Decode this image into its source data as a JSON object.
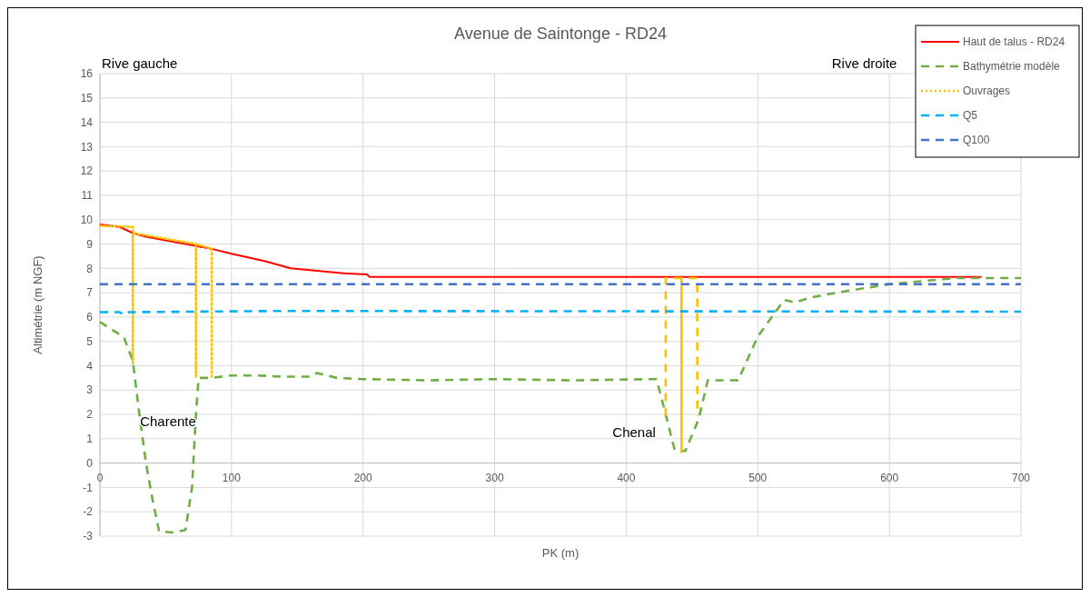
{
  "chart_data": {
    "type": "line",
    "title": "Avenue de Saintonge - RD24",
    "xlabel": "PK (m)",
    "ylabel": "Altimétrie (m NGF)",
    "xlim": [
      0,
      700
    ],
    "xticks": [
      0,
      100,
      200,
      300,
      400,
      500,
      600,
      700
    ],
    "ylim": [
      -3,
      16
    ],
    "yticks": [
      -3,
      -2,
      -1,
      0,
      1,
      2,
      3,
      4,
      5,
      6,
      7,
      8,
      9,
      10,
      11,
      12,
      13,
      14,
      15,
      16
    ],
    "grid": true,
    "legend": "top right",
    "series": [
      {
        "name": "Haut de talus - RD24",
        "color": "#ff0000",
        "line_style": "solid",
        "x": [
          0,
          15,
          25,
          35,
          50,
          65,
          80,
          85,
          100,
          125,
          145,
          165,
          185,
          203,
          205,
          670
        ],
        "values": [
          9.8,
          9.7,
          9.45,
          9.3,
          9.15,
          9.0,
          8.85,
          8.8,
          8.6,
          8.3,
          8.0,
          7.9,
          7.8,
          7.75,
          7.65,
          7.65
        ]
      },
      {
        "name": "Bathymétrie modèle",
        "color": "#70ad47",
        "line_style": "dashed",
        "x": [
          0,
          10,
          18,
          25,
          30,
          35,
          40,
          45,
          55,
          65,
          70,
          73,
          75,
          85,
          100,
          120,
          140,
          160,
          165,
          180,
          200,
          250,
          300,
          360,
          420,
          423,
          430,
          437,
          445,
          455,
          462,
          470,
          485,
          500,
          520,
          528,
          540,
          560,
          600,
          650,
          700
        ],
        "values": [
          5.8,
          5.45,
          5.2,
          4.2,
          2,
          0,
          -1.5,
          -2.8,
          -2.85,
          -2.75,
          -1,
          2,
          3.5,
          3.5,
          3.6,
          3.6,
          3.55,
          3.55,
          3.7,
          3.5,
          3.45,
          3.4,
          3.45,
          3.4,
          3.45,
          3.45,
          2,
          0.5,
          0.5,
          1.8,
          3.4,
          3.4,
          3.4,
          5.2,
          6.7,
          6.6,
          6.8,
          7.0,
          7.35,
          7.6,
          7.6
        ]
      },
      {
        "name": "Ouvrages",
        "color": "#ffc000",
        "line_style": "dotted",
        "x": [
          0,
          25,
          25,
          25,
          73,
          73,
          73,
          85,
          85
        ],
        "values": [
          9.75,
          9.7,
          4.1,
          9.45,
          9.0,
          3.55,
          9.0,
          8.8,
          3.55
        ]
      },
      {
        "color": "#ffc000",
        "line_style": "dashed",
        "x": [
          430,
          430,
          442,
          442,
          442,
          454,
          454
        ],
        "values": [
          1.95,
          7.6,
          7.6,
          0.45,
          7.6,
          7.6,
          1.95
        ]
      },
      {
        "name": "Q5",
        "color": "#00b0f0",
        "line_style": "dashed",
        "x": [
          0,
          15,
          18,
          22,
          140,
          700
        ],
        "values": [
          6.2,
          6.2,
          6.1,
          6.2,
          6.25,
          6.22
        ]
      },
      {
        "name": "Q100",
        "color": "#4472c4",
        "line_style": "dashed",
        "x": [
          0,
          700
        ],
        "values": [
          7.35,
          7.35
        ]
      }
    ],
    "annotations": [
      "Rive gauche",
      "Rive droite",
      "Charente",
      "Chenal"
    ]
  }
}
